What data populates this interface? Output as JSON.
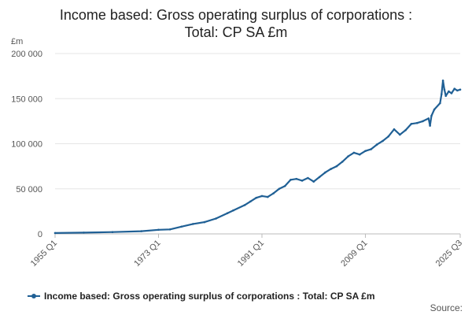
{
  "chart_data": {
    "type": "line",
    "title_line1": "Income based: Gross operating surplus of corporations :",
    "title_line2": "Total: CP SA £m",
    "ylabel": "£m",
    "ylim": [
      0,
      200000
    ],
    "yticks": [
      0,
      50000,
      100000,
      150000,
      200000
    ],
    "ytick_labels": [
      "0",
      "50 000",
      "100 000",
      "150 000",
      "200 000"
    ],
    "xlim": [
      1955.0,
      2025.5
    ],
    "xticks": [
      1955.0,
      1973.0,
      1991.0,
      2009.0,
      2025.5
    ],
    "xtick_labels": [
      "1955 Q1",
      "1973 Q1",
      "1991 Q1",
      "2009 Q1",
      "2025 Q3"
    ],
    "grid": true,
    "legend_position": "bottom",
    "series": [
      {
        "name": "Income based: Gross operating surplus of corporations : Total: CP SA £m",
        "color": "#206095",
        "x": [
          1955.0,
          1960.0,
          1965.0,
          1970.0,
          1973.0,
          1975.0,
          1977.0,
          1979.0,
          1981.0,
          1983.0,
          1985.0,
          1986.0,
          1988.0,
          1989.0,
          1990.0,
          1991.0,
          1992.0,
          1993.0,
          1994.0,
          1995.0,
          1996.0,
          1997.0,
          1998.0,
          1999.0,
          2000.0,
          2001.0,
          2002.0,
          2003.0,
          2004.0,
          2005.0,
          2006.0,
          2007.0,
          2008.0,
          2009.0,
          2010.0,
          2011.0,
          2012.0,
          2013.0,
          2014.0,
          2015.0,
          2016.0,
          2017.0,
          2018.0,
          2019.0,
          2020.0,
          2020.25,
          2020.5,
          2021.0,
          2022.0,
          2022.25,
          2022.5,
          2022.75,
          2023.0,
          2023.5,
          2024.0,
          2024.5,
          2025.0,
          2025.5
        ],
        "y": [
          1000,
          1400,
          2000,
          3000,
          4500,
          5000,
          8000,
          11000,
          13000,
          17000,
          23000,
          26000,
          32000,
          36000,
          40000,
          42000,
          41000,
          45000,
          50000,
          53000,
          60000,
          61000,
          59000,
          62000,
          58000,
          63000,
          68000,
          72000,
          75000,
          80000,
          86000,
          90000,
          88000,
          92000,
          94000,
          99000,
          103000,
          108000,
          116000,
          110000,
          115000,
          122000,
          123000,
          125000,
          128000,
          120000,
          131000,
          138000,
          145000,
          155000,
          170000,
          160000,
          153000,
          158000,
          156000,
          161000,
          159000,
          160000
        ]
      }
    ]
  },
  "source_label": "Source:"
}
